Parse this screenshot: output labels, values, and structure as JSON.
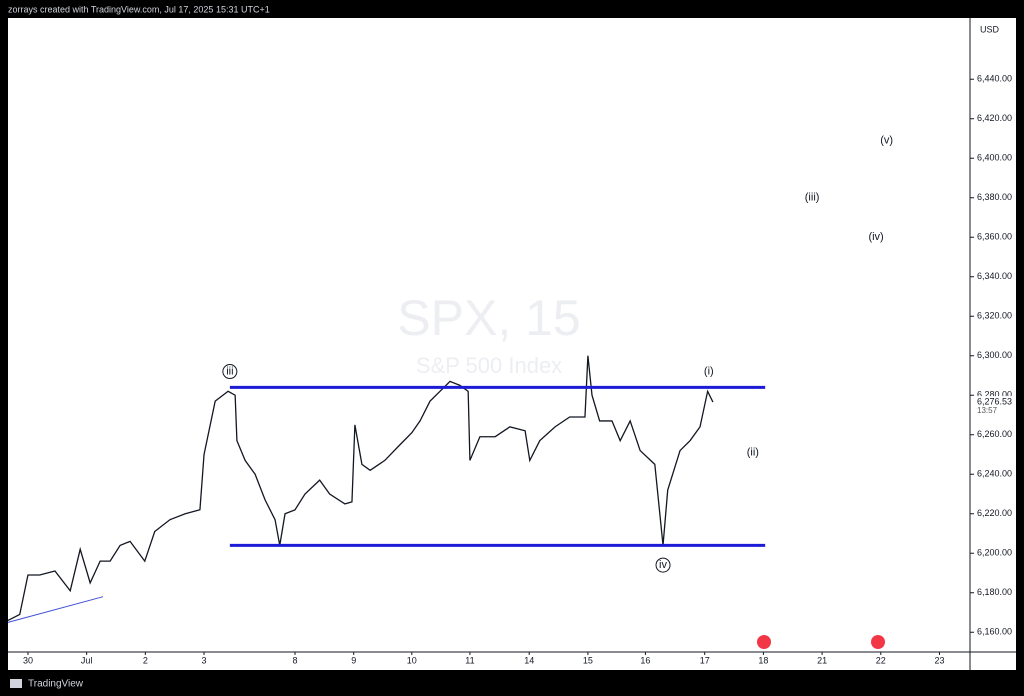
{
  "header": {
    "text": "zorrays created with TradingView.com, Jul 17, 2025 15:31 UTC+1"
  },
  "footer": {
    "brand": "TradingView"
  },
  "chart_data": {
    "type": "line",
    "title": "SPX, 15",
    "subtitle": "S&P 500 Index",
    "currency": "USD",
    "color": "#131722",
    "x": [
      -0.34,
      -0.14,
      0,
      0.2,
      0.46,
      0.72,
      0.89,
      1.06,
      1.23,
      1.4,
      1.57,
      1.74,
      1.99,
      2.16,
      2.42,
      2.68,
      2.93,
      3.0,
      3.19,
      3.41,
      3.53,
      3.56,
      3.7,
      3.87,
      4.04,
      4.21,
      4.29,
      4.38,
      4.55,
      4.72,
      4.97,
      5.14,
      5.4,
      5.52,
      5.57,
      5.69,
      5.83,
      6.08,
      6.34,
      6.54,
      6.68,
      6.85,
      7.02,
      7.19,
      7.36,
      7.5,
      7.53,
      7.7,
      7.96,
      8.21,
      8.47,
      8.55,
      8.72,
      8.98,
      9.23,
      9.49,
      9.54,
      9.61,
      9.74,
      9.95,
      10.09,
      10.26,
      10.43,
      10.68,
      10.82,
      10.9,
      11.11,
      11.28,
      11.45,
      11.58,
      11.67
    ],
    "values": [
      6166,
      6169,
      6189,
      6189,
      6191,
      6181,
      6202,
      6185,
      6196,
      6196,
      6204,
      6206,
      6196,
      6211,
      6217,
      6220,
      6222,
      6250,
      6277,
      6282,
      6280,
      6257,
      6247,
      6240,
      6227,
      6217,
      6204,
      6220,
      6222,
      6230,
      6237,
      6230,
      6225,
      6226,
      6265,
      6245,
      6242,
      6247,
      6255,
      6261,
      6267,
      6277,
      6282,
      6287,
      6285,
      6282,
      6247,
      6259,
      6259,
      6264,
      6262,
      6247,
      6257,
      6264,
      6269,
      6269,
      6300,
      6280,
      6267,
      6267,
      6257,
      6267,
      6252,
      6245,
      6204,
      6232,
      6252,
      6257,
      6264,
      6282,
      6276.53
    ],
    "xlim": [
      -0.34,
      16.05
    ],
    "xticks": [
      {
        "value": 0,
        "label": "30"
      },
      {
        "value": 1,
        "label": "Jul"
      },
      {
        "value": 2,
        "label": "2"
      },
      {
        "value": 3,
        "label": "3"
      },
      {
        "value": 4.55,
        "label": "8"
      },
      {
        "value": 5.55,
        "label": "9"
      },
      {
        "value": 6.54,
        "label": "10"
      },
      {
        "value": 7.53,
        "label": "11"
      },
      {
        "value": 8.54,
        "label": "14"
      },
      {
        "value": 9.54,
        "label": "15"
      },
      {
        "value": 10.52,
        "label": "16"
      },
      {
        "value": 11.53,
        "label": "17"
      },
      {
        "value": 12.53,
        "label": "18"
      },
      {
        "value": 13.53,
        "label": "21"
      },
      {
        "value": 14.53,
        "label": "22"
      },
      {
        "value": 15.53,
        "label": "23"
      }
    ],
    "ylim": [
      6150,
      6471
    ],
    "yticks": [
      {
        "value": 6160,
        "label": "6,160.00"
      },
      {
        "value": 6180,
        "label": "6,180.00"
      },
      {
        "value": 6200,
        "label": "6,200.00"
      },
      {
        "value": 6220,
        "label": "6,220.00"
      },
      {
        "value": 6240,
        "label": "6,240.00"
      },
      {
        "value": 6260,
        "label": "6,260.00"
      },
      {
        "value": 6280,
        "label": "6,280.00"
      },
      {
        "value": 6300,
        "label": "6,300.00"
      },
      {
        "value": 6320,
        "label": "6,320.00"
      },
      {
        "value": 6340,
        "label": "6,340.00"
      },
      {
        "value": 6360,
        "label": "6,360.00"
      },
      {
        "value": 6380,
        "label": "6,380.00"
      },
      {
        "value": 6400,
        "label": "6,400.00"
      },
      {
        "value": 6420,
        "label": "6,420.00"
      },
      {
        "value": 6440,
        "label": "6,440.00"
      }
    ],
    "last_price": {
      "value": 6276.53,
      "label": "6,276.53"
    },
    "countdown": "13:57",
    "levels": [
      {
        "value": 6284,
        "x": [
          3.44,
          12.56
        ],
        "color": "#1c1cd6"
      },
      {
        "value": 6204,
        "x": [
          3.44,
          12.56
        ],
        "color": "#1c1cd6"
      }
    ],
    "trendline": {
      "x": [
        -0.34,
        1.28
      ],
      "values": [
        6165,
        6178
      ],
      "color": "#3d4fd6"
    },
    "annotations": [
      {
        "text": "iii",
        "x": 3.44,
        "y": 6292,
        "circled": true
      },
      {
        "text": "(i)",
        "x": 11.6,
        "y": 6292,
        "circled": false
      },
      {
        "text": "(ii)",
        "x": 12.35,
        "y": 6251,
        "circled": false
      },
      {
        "text": "(iii)",
        "x": 13.36,
        "y": 6380,
        "circled": false
      },
      {
        "text": "(iv)",
        "x": 14.45,
        "y": 6360,
        "circled": false
      },
      {
        "text": "(v)",
        "x": 14.63,
        "y": 6409,
        "circled": false
      },
      {
        "text": "iv",
        "x": 10.82,
        "y": 6194,
        "circled": true
      }
    ]
  }
}
